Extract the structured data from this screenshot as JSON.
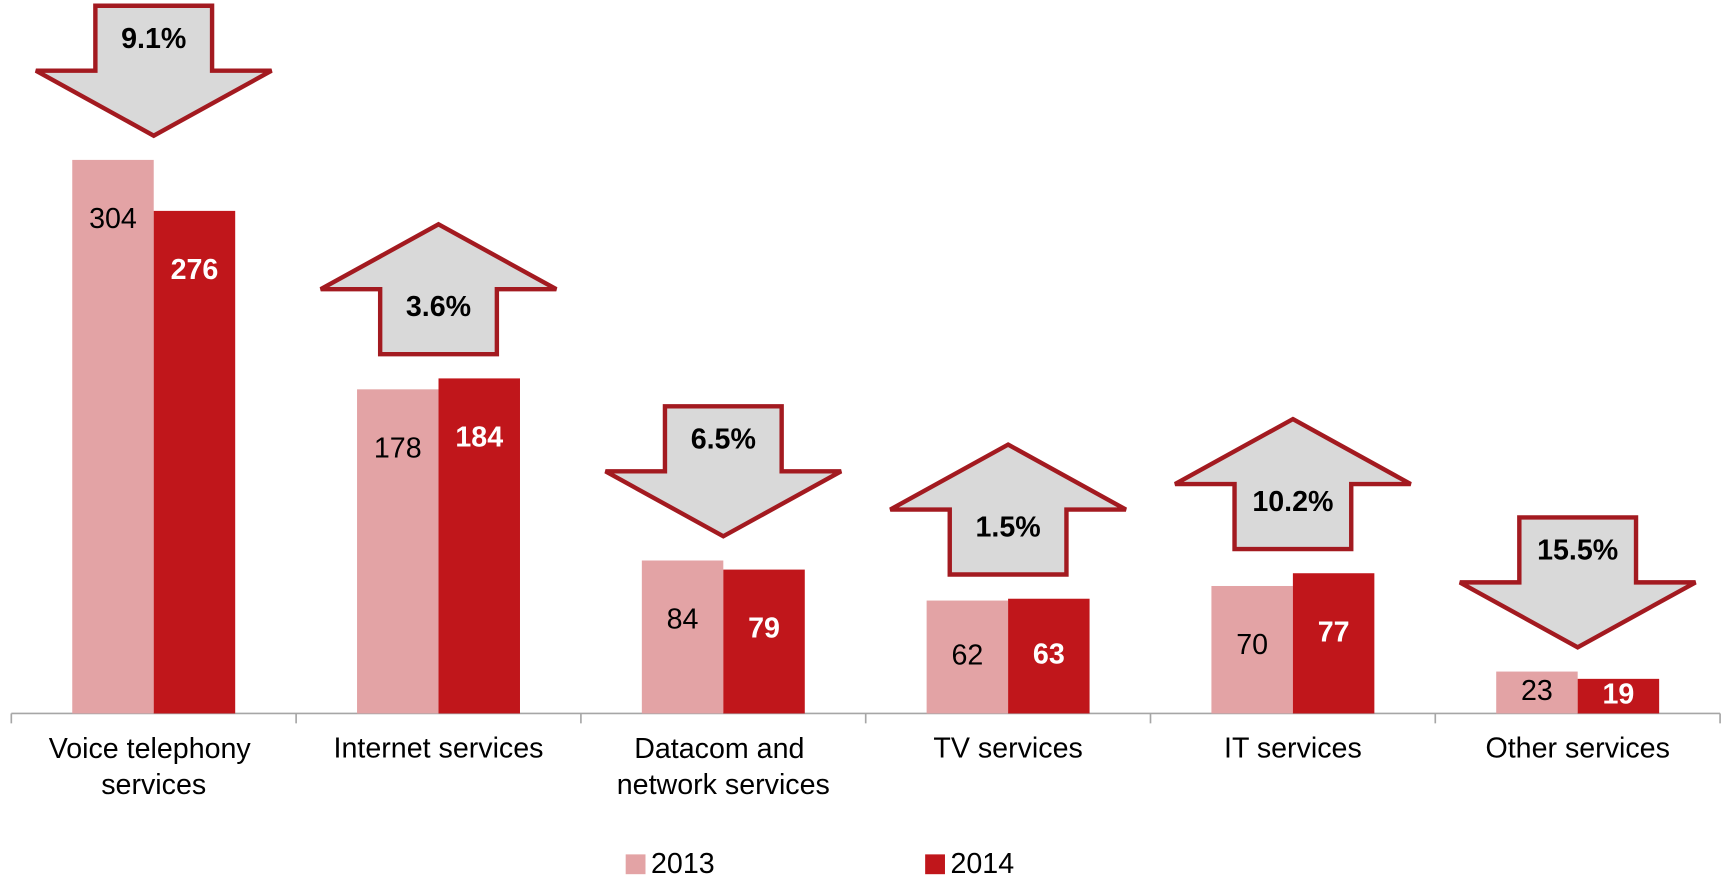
{
  "chart_data": {
    "type": "bar",
    "categories": [
      "Voice telephony services",
      "Internet services",
      "Datacom and network services",
      "TV services",
      "IT services",
      "Other services"
    ],
    "series": [
      {
        "name": "2013",
        "color": "#e3a3a5",
        "label_color": "#000000",
        "label_weight": "normal",
        "values": [
          304,
          178,
          84,
          62,
          70,
          23
        ]
      },
      {
        "name": "2014",
        "color": "#c0161b",
        "label_color": "#ffffff",
        "label_weight": "bold",
        "values": [
          276,
          184,
          79,
          63,
          77,
          19
        ]
      }
    ],
    "ylim": [
      0,
      390
    ],
    "annotations": [
      {
        "label": "9.1%",
        "direction": "down"
      },
      {
        "label": "3.6%",
        "direction": "up"
      },
      {
        "label": "6.5%",
        "direction": "down"
      },
      {
        "label": "1.5%",
        "direction": "up"
      },
      {
        "label": "10.2%",
        "direction": "up"
      },
      {
        "label": "15.5%",
        "direction": "down"
      }
    ],
    "annotation_fill": "#d9d9d9",
    "annotation_stroke": "#a31a20",
    "legend": "bottom"
  }
}
